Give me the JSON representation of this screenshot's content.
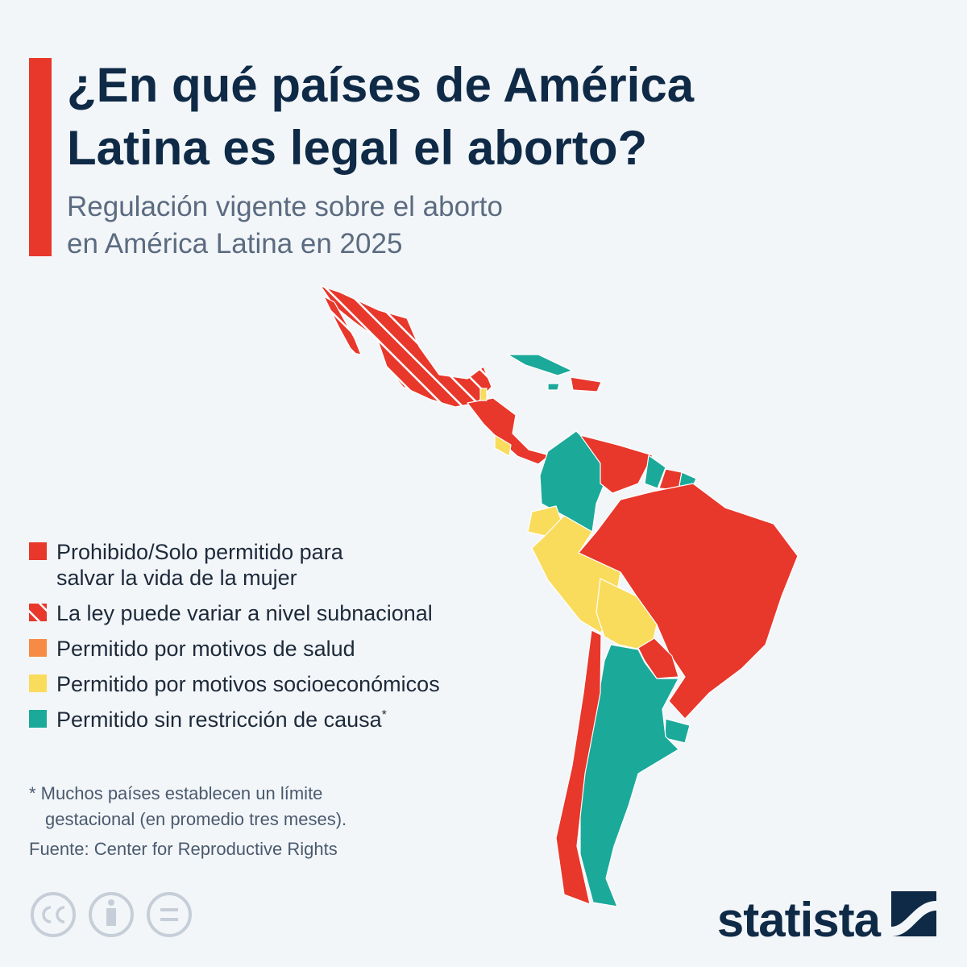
{
  "header": {
    "title": [
      "¿En qué países de América",
      "Latina es legal el aborto?"
    ],
    "subtitle": [
      "Regulación vigente sobre el aborto",
      "en América Latina en 2025"
    ]
  },
  "legend": {
    "items": [
      {
        "label": [
          "Prohibido/Solo permitido para",
          "salvar la vida de la mujer"
        ],
        "color": "#e8372b"
      },
      {
        "label": [
          "La ley puede variar a nivel subnacional"
        ],
        "color": "#e8372b",
        "hatched": true
      },
      {
        "label": [
          "Permitido por motivos de salud"
        ],
        "color": "#f78b45"
      },
      {
        "label": [
          "Permitido por motivos socioeconómicos"
        ],
        "color": "#f9dc5c"
      },
      {
        "label": [
          "Permitido sin restricción de causa"
        ],
        "note_mark": "*",
        "color": "#1ba99a"
      }
    ]
  },
  "notes": {
    "footnote": [
      "* Muchos países establecen un límite",
      "gestacional (en promedio tres meses)."
    ],
    "source": "Fuente: Center for Reproductive Rights"
  },
  "brand": "statista"
}
